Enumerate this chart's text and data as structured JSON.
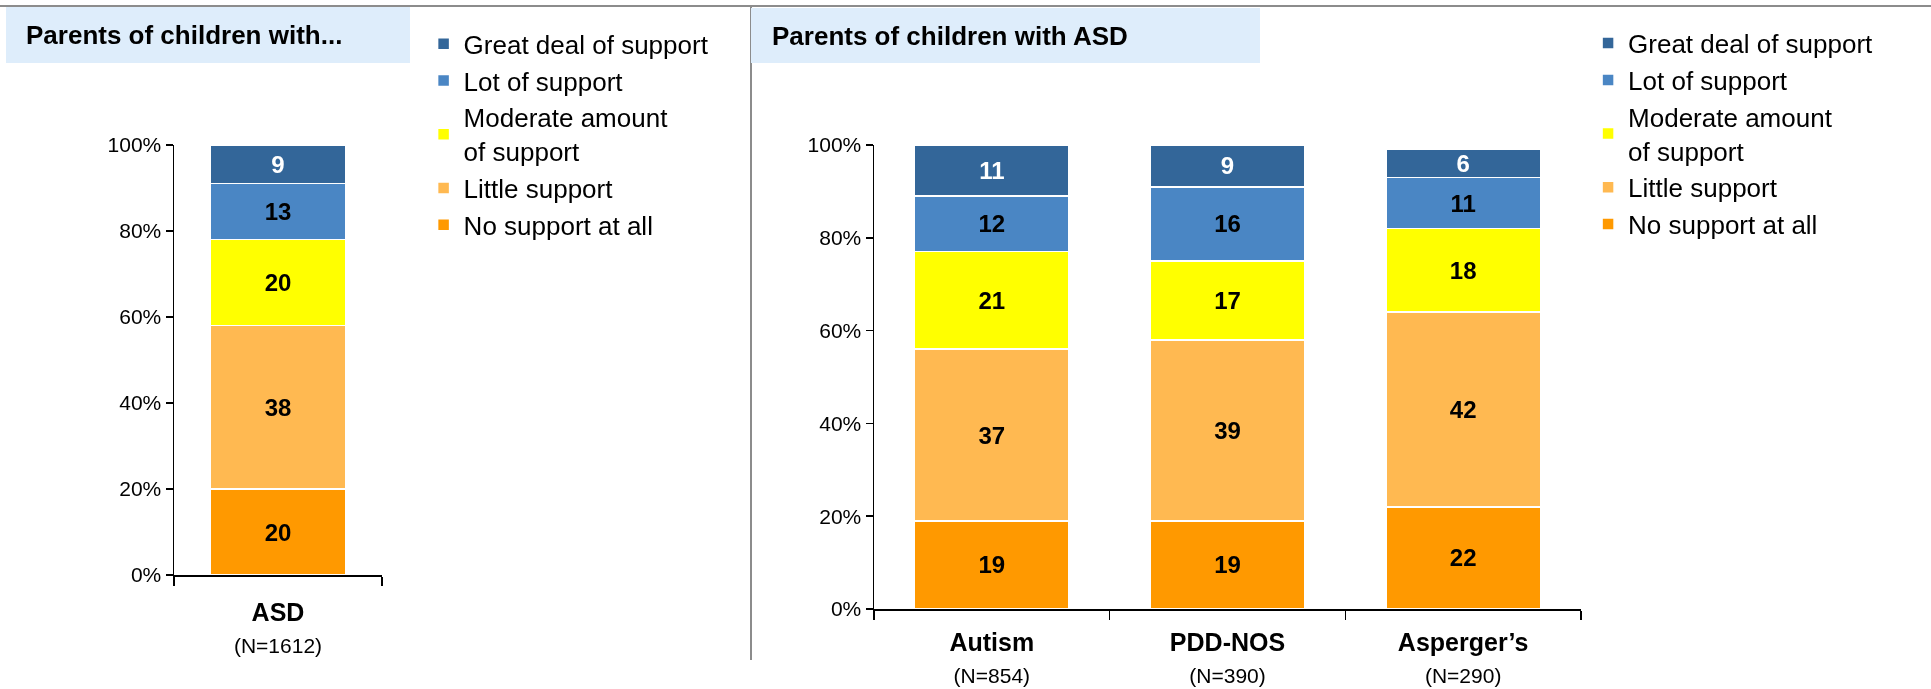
{
  "chart_data": [
    {
      "type": "bar",
      "title": "Parents of children with...",
      "stacked": true,
      "categories": [
        "ASD\n(N=1612)"
      ],
      "series": [
        {
          "name": "No support at all",
          "color": "#ff9900",
          "values": [
            20
          ]
        },
        {
          "name": "Little support",
          "color": "#ffb951",
          "values": [
            38
          ]
        },
        {
          "name": "Moderate amount of support",
          "color": "#ffff00",
          "values": [
            20
          ]
        },
        {
          "name": "Lot of support",
          "color": "#4a86c4",
          "values": [
            13
          ]
        },
        {
          "name": "Great deal of support",
          "color": "#336699",
          "values": [
            9
          ]
        }
      ],
      "ylim": [
        0,
        100
      ],
      "yticks": [
        {
          "value": 0,
          "label": "0%"
        },
        {
          "value": 20,
          "label": "20%"
        },
        {
          "value": 40,
          "label": "40%"
        },
        {
          "value": 60,
          "label": "60%"
        },
        {
          "value": 80,
          "label": "80%"
        },
        {
          "value": 100,
          "label": "100%"
        }
      ],
      "data_labels": true,
      "legend": "top right"
    },
    {
      "type": "bar",
      "title": "Parents of children with ASD",
      "stacked": true,
      "categories": [
        "Autism\n(N=854)",
        "PDD-NOS\n(N=390)",
        "Asperger’s\n(N=290)"
      ],
      "series": [
        {
          "name": "No support at all",
          "color": "#ff9900",
          "values": [
            19,
            19,
            22
          ]
        },
        {
          "name": "Little support",
          "color": "#ffb951",
          "values": [
            37,
            39,
            42
          ]
        },
        {
          "name": "Moderate amount of support",
          "color": "#ffff00",
          "values": [
            21,
            17,
            18
          ]
        },
        {
          "name": "Lot of support",
          "color": "#4a86c4",
          "values": [
            12,
            16,
            11
          ]
        },
        {
          "name": "Great deal of support",
          "color": "#336699",
          "values": [
            11,
            9,
            6
          ]
        }
      ],
      "ylim": [
        0,
        100
      ],
      "yticks": [
        {
          "value": 0,
          "label": "0%"
        },
        {
          "value": 20,
          "label": "20%"
        },
        {
          "value": 40,
          "label": "40%"
        },
        {
          "value": 60,
          "label": "60%"
        },
        {
          "value": 80,
          "label": "80%"
        },
        {
          "value": 100,
          "label": "100%"
        }
      ],
      "data_labels": true,
      "legend": "top right"
    }
  ]
}
